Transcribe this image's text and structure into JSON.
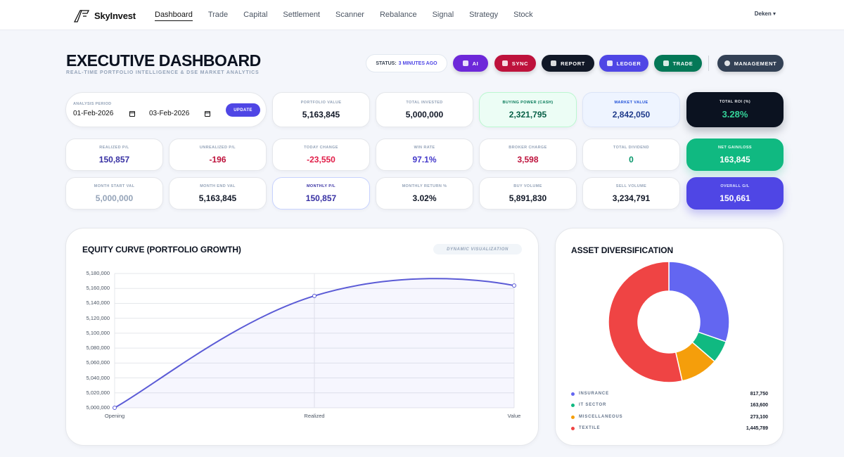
{
  "nav": {
    "brand": "SkyInvest",
    "links": [
      "Dashboard",
      "Trade",
      "Capital",
      "Settlement",
      "Scanner",
      "Rebalance",
      "Signal",
      "Strategy",
      "Stock"
    ],
    "user": "Deken ▾"
  },
  "header": {
    "title": "EXECUTIVE DASHBOARD",
    "subtitle": "REAL-TIME PORTFOLIO INTELLIGENCE & DSE MARKET ANALYTICS",
    "status_label": "STATUS:",
    "status_value": "3 MINUTES AGO",
    "buttons": {
      "ai": "AI",
      "sync": "SYNC",
      "report": "REPORT",
      "ledger": "LEDGER",
      "trade": "TRADE",
      "management": "MANAGEMENT"
    }
  },
  "period": {
    "label": "ANALYSIS PERIOD",
    "from": "01-Feb-2026",
    "to": "03-Feb-2026",
    "update": "UPDATE"
  },
  "stats_row1": {
    "portfolio_value": {
      "label": "PORTFOLIO VALUE",
      "value": "5,163,845"
    },
    "total_invested": {
      "label": "TOTAL INVESTED",
      "value": "5,000,000"
    },
    "buying_power": {
      "label": "BUYING POWER (CASH)",
      "value": "2,321,795"
    },
    "market_value": {
      "label": "MARKET VALUE",
      "value": "2,842,050"
    },
    "total_roi": {
      "label": "TOTAL ROI (%)",
      "value": "3.28%"
    }
  },
  "stats_row2": {
    "realized": {
      "label": "REALIZED P/L",
      "value": "150,857"
    },
    "unrealized": {
      "label": "UNREALIZED P/L",
      "value": "-196"
    },
    "today_change": {
      "label": "TODAY CHANGE",
      "value": "-23,550"
    },
    "win_rate": {
      "label": "WIN RATE",
      "value": "97.1%"
    },
    "broker_charge": {
      "label": "BROKER CHARGE",
      "value": "3,598"
    },
    "total_dividend": {
      "label": "TOTAL DIVIDEND",
      "value": "0"
    },
    "net_gain": {
      "label": "NET GAIN/LOSS",
      "value": "163,845"
    }
  },
  "stats_row3": {
    "month_start": {
      "label": "MONTH START VAL",
      "value": "5,000,000"
    },
    "month_end": {
      "label": "MONTH END VAL",
      "value": "5,163,845"
    },
    "monthly_pl": {
      "label": "MONTHLY P/L",
      "value": "150,857"
    },
    "monthly_return": {
      "label": "MONTHLY RETURN %",
      "value": "3.02%"
    },
    "buy_volume": {
      "label": "BUY VOLUME",
      "value": "5,891,830"
    },
    "sell_volume": {
      "label": "SELL VOLUME",
      "value": "3,234,791"
    },
    "overall_gl": {
      "label": "OVERALL G/L",
      "value": "150,661"
    }
  },
  "equity": {
    "title": "EQUITY CURVE (PORTFOLIO GROWTH)",
    "badge": "DYNAMIC VISUALIZATION"
  },
  "diversification": {
    "title": "ASSET DIVERSIFICATION",
    "legend": [
      {
        "name": "INSURANCE",
        "value": "817,750",
        "color": "#6366f1"
      },
      {
        "name": "IT SECTOR",
        "value": "163,600",
        "color": "#10b981"
      },
      {
        "name": "MISCELLANEOUS",
        "value": "273,100",
        "color": "#f59e0b"
      },
      {
        "name": "TEXTILE",
        "value": "1,445,789",
        "color": "#ef4444"
      }
    ]
  },
  "chart_data": [
    {
      "type": "line",
      "title": "EQUITY CURVE (PORTFOLIO GROWTH)",
      "categories": [
        "Opening",
        "Realized",
        "Value"
      ],
      "series": [
        {
          "values": [
            5000000,
            5150000,
            5163845
          ]
        }
      ],
      "y_ticks": [
        "5,000,000",
        "5,020,000",
        "5,040,000",
        "5,060,000",
        "5,080,000",
        "5,100,000",
        "5,120,000",
        "5,140,000",
        "5,160,000",
        "5,180,000"
      ],
      "ylim": [
        5000000,
        5180000
      ],
      "grid": true,
      "line_color": "#5b5bd6"
    },
    {
      "type": "pie",
      "title": "ASSET DIVERSIFICATION",
      "categories": [
        "INSURANCE",
        "IT SECTOR",
        "MISCELLANEOUS",
        "TEXTILE"
      ],
      "values": [
        817750,
        163600,
        273100,
        1445789
      ],
      "colors": [
        "#6366f1",
        "#10b981",
        "#f59e0b",
        "#ef4444"
      ],
      "donut": true
    }
  ]
}
